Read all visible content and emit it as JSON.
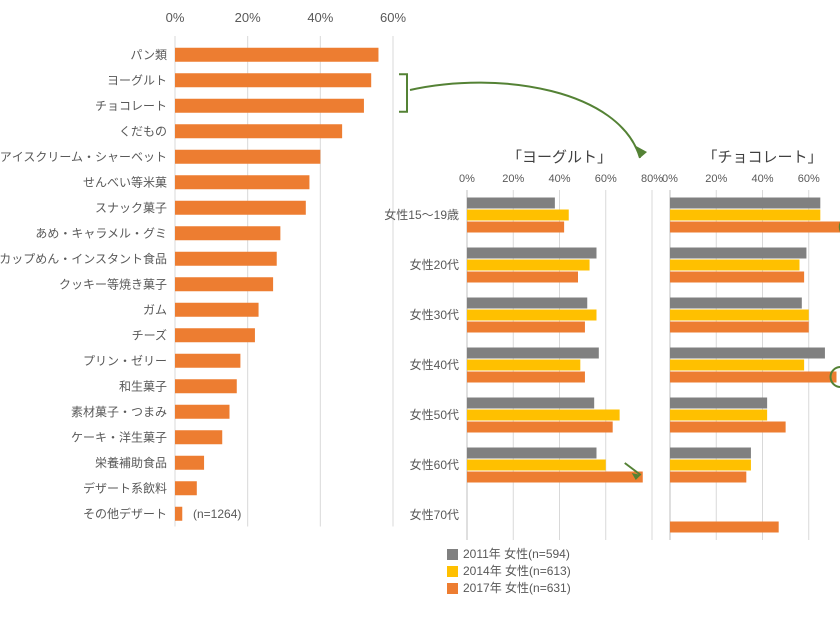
{
  "colors": {
    "bar_main": "#ed7d31",
    "series_2011": "#808080",
    "series_2014": "#ffc000",
    "series_2017": "#ed7d31",
    "grid": "#d9d9d9",
    "axis": "#bfbfbf",
    "arrow": "#548235",
    "highlight": "#548235",
    "text": "#595959"
  },
  "left_chart": {
    "xlim": [
      0,
      60
    ],
    "xtick_step": 20,
    "xticks": [
      "0%",
      "20%",
      "40%",
      "60%"
    ],
    "n_label": "(n=1264)",
    "categories": [
      {
        "label": "パン類",
        "value": 56
      },
      {
        "label": "ヨーグルト",
        "value": 54
      },
      {
        "label": "チョコレート",
        "value": 52
      },
      {
        "label": "くだもの",
        "value": 46
      },
      {
        "label": "アイスクリーム・シャーベット",
        "value": 40
      },
      {
        "label": "せんべい等米菓",
        "value": 37
      },
      {
        "label": "スナック菓子",
        "value": 36
      },
      {
        "label": "あめ・キャラメル・グミ",
        "value": 29
      },
      {
        "label": "カップめん・インスタント食品",
        "value": 28
      },
      {
        "label": "クッキー等焼き菓子",
        "value": 27
      },
      {
        "label": "ガム",
        "value": 23
      },
      {
        "label": "チーズ",
        "value": 22
      },
      {
        "label": "プリン・ゼリー",
        "value": 18
      },
      {
        "label": "和生菓子",
        "value": 17
      },
      {
        "label": "素材菓子・つまみ",
        "value": 15
      },
      {
        "label": "ケーキ・洋生菓子",
        "value": 13
      },
      {
        "label": "栄養補助食品",
        "value": 8
      },
      {
        "label": "デザート系飲料",
        "value": 6
      },
      {
        "label": "その他デザート",
        "value": 2
      }
    ]
  },
  "right_charts": {
    "xlim": [
      0,
      80
    ],
    "xtick_step": 20,
    "xticks": [
      "0%",
      "20%",
      "40%",
      "60%",
      "80%"
    ],
    "age_labels": [
      "女性15～19歳",
      "女性20代",
      "女性30代",
      "女性40代",
      "女性50代",
      "女性60代",
      "女性70代"
    ],
    "legend": [
      {
        "key": "2011",
        "label": "2011年 女性(n=594)",
        "color": "#808080"
      },
      {
        "key": "2014",
        "label": "2014年 女性(n=613)",
        "color": "#ffc000"
      },
      {
        "key": "2017",
        "label": "2017年 女性(n=631)",
        "color": "#ed7d31"
      }
    ],
    "panels": [
      {
        "title": "「ヨーグルト」",
        "series": [
          {
            "2011": 38,
            "2014": 44,
            "2017": 42
          },
          {
            "2011": 56,
            "2014": 53,
            "2017": 48
          },
          {
            "2011": 52,
            "2014": 56,
            "2017": 51
          },
          {
            "2011": 57,
            "2014": 49,
            "2017": 51
          },
          {
            "2011": 55,
            "2014": 66,
            "2017": 63
          },
          {
            "2011": 56,
            "2014": 60,
            "2017": 76
          },
          {
            "2011": null,
            "2014": null,
            "2017": null
          }
        ]
      },
      {
        "title": "「チョコレート」",
        "series": [
          {
            "2011": 65,
            "2014": 65,
            "2017": 76
          },
          {
            "2011": 59,
            "2014": 56,
            "2017": 58
          },
          {
            "2011": 57,
            "2014": 60,
            "2017": 60
          },
          {
            "2011": 67,
            "2014": 58,
            "2017": 72
          },
          {
            "2011": 42,
            "2014": 42,
            "2017": 50
          },
          {
            "2011": 35,
            "2014": 35,
            "2017": 33
          },
          {
            "2011": null,
            "2014": null,
            "2017": 47
          }
        ]
      }
    ]
  }
}
